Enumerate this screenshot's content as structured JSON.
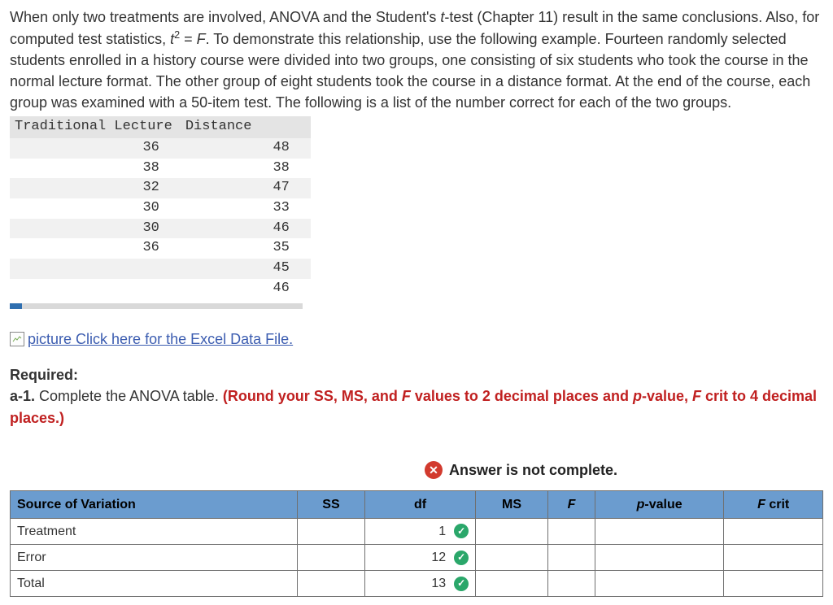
{
  "problem": {
    "text_before_eq": "When only two treatments are involved, ANOVA and the Student's ",
    "t_test": "t",
    "text_after_t": "-test (Chapter 11) result in the same conclusions. Also, for computed test statistics, ",
    "eq_lhs_base": "t",
    "eq_lhs_sup": "2",
    "eq_mid": " = ",
    "eq_rhs": "F",
    "text_after_eq": ". To demonstrate this relationship, use the following example. Fourteen randomly selected students enrolled in a history course were divided into two groups, one consisting of six students who took the course in the normal lecture format. The other group of eight students took the course in a distance format. At the end of the course, each group was examined with a 50-item test. The following is a list of the number correct for each of the two groups."
  },
  "data_table": {
    "headers": [
      "Traditional Lecture",
      "Distance"
    ],
    "rows": [
      [
        "36",
        "48"
      ],
      [
        "38",
        "38"
      ],
      [
        "32",
        "47"
      ],
      [
        "30",
        "33"
      ],
      [
        "30",
        "46"
      ],
      [
        "36",
        "35"
      ],
      [
        "",
        "45"
      ],
      [
        "",
        "46"
      ]
    ],
    "header_bg": "#e4e4e4",
    "row_alt_bg": "#f1f1f1"
  },
  "excel_link": {
    "icon_alt": "picture",
    "text": "Click here for the Excel Data File.",
    "link_color": "#3b5cb0"
  },
  "required": {
    "label": "Required:",
    "line_prefix": "a-1.",
    "line_text_plain": " Complete the ANOVA table. ",
    "round_text_1": "(Round your SS, MS, and ",
    "round_F": "F",
    "round_text_2": " values to 2 decimal places and ",
    "round_p": "p",
    "round_text_3": "-value, ",
    "round_F2": "F",
    "round_text_4": " crit to 4 decimal places.)"
  },
  "banner": {
    "icon_glyph": "✕",
    "text": "Answer is not complete.",
    "icon_bg": "#d23a2e"
  },
  "anova": {
    "header_bg": "#6b9ccf",
    "columns": [
      "Source of Variation",
      "SS",
      "df",
      "MS",
      "F",
      "p-value",
      "F crit"
    ],
    "col_italic": [
      false,
      false,
      false,
      false,
      true,
      true,
      true
    ],
    "col_fcrit_prefix_italic_only": true,
    "rows": [
      {
        "label": "Treatment",
        "ss": "",
        "df": "1",
        "df_ok": true,
        "ms": "",
        "f": "",
        "p": "",
        "fcrit": ""
      },
      {
        "label": "Error",
        "ss": "",
        "df": "12",
        "df_ok": true,
        "ms": "",
        "f": "",
        "p": "",
        "fcrit": ""
      },
      {
        "label": "Total",
        "ss": "",
        "df": "13",
        "df_ok": true,
        "ms": "",
        "f": "",
        "p": "",
        "fcrit": ""
      }
    ],
    "check_bg": "#2aa76a",
    "check_glyph": "✓"
  }
}
